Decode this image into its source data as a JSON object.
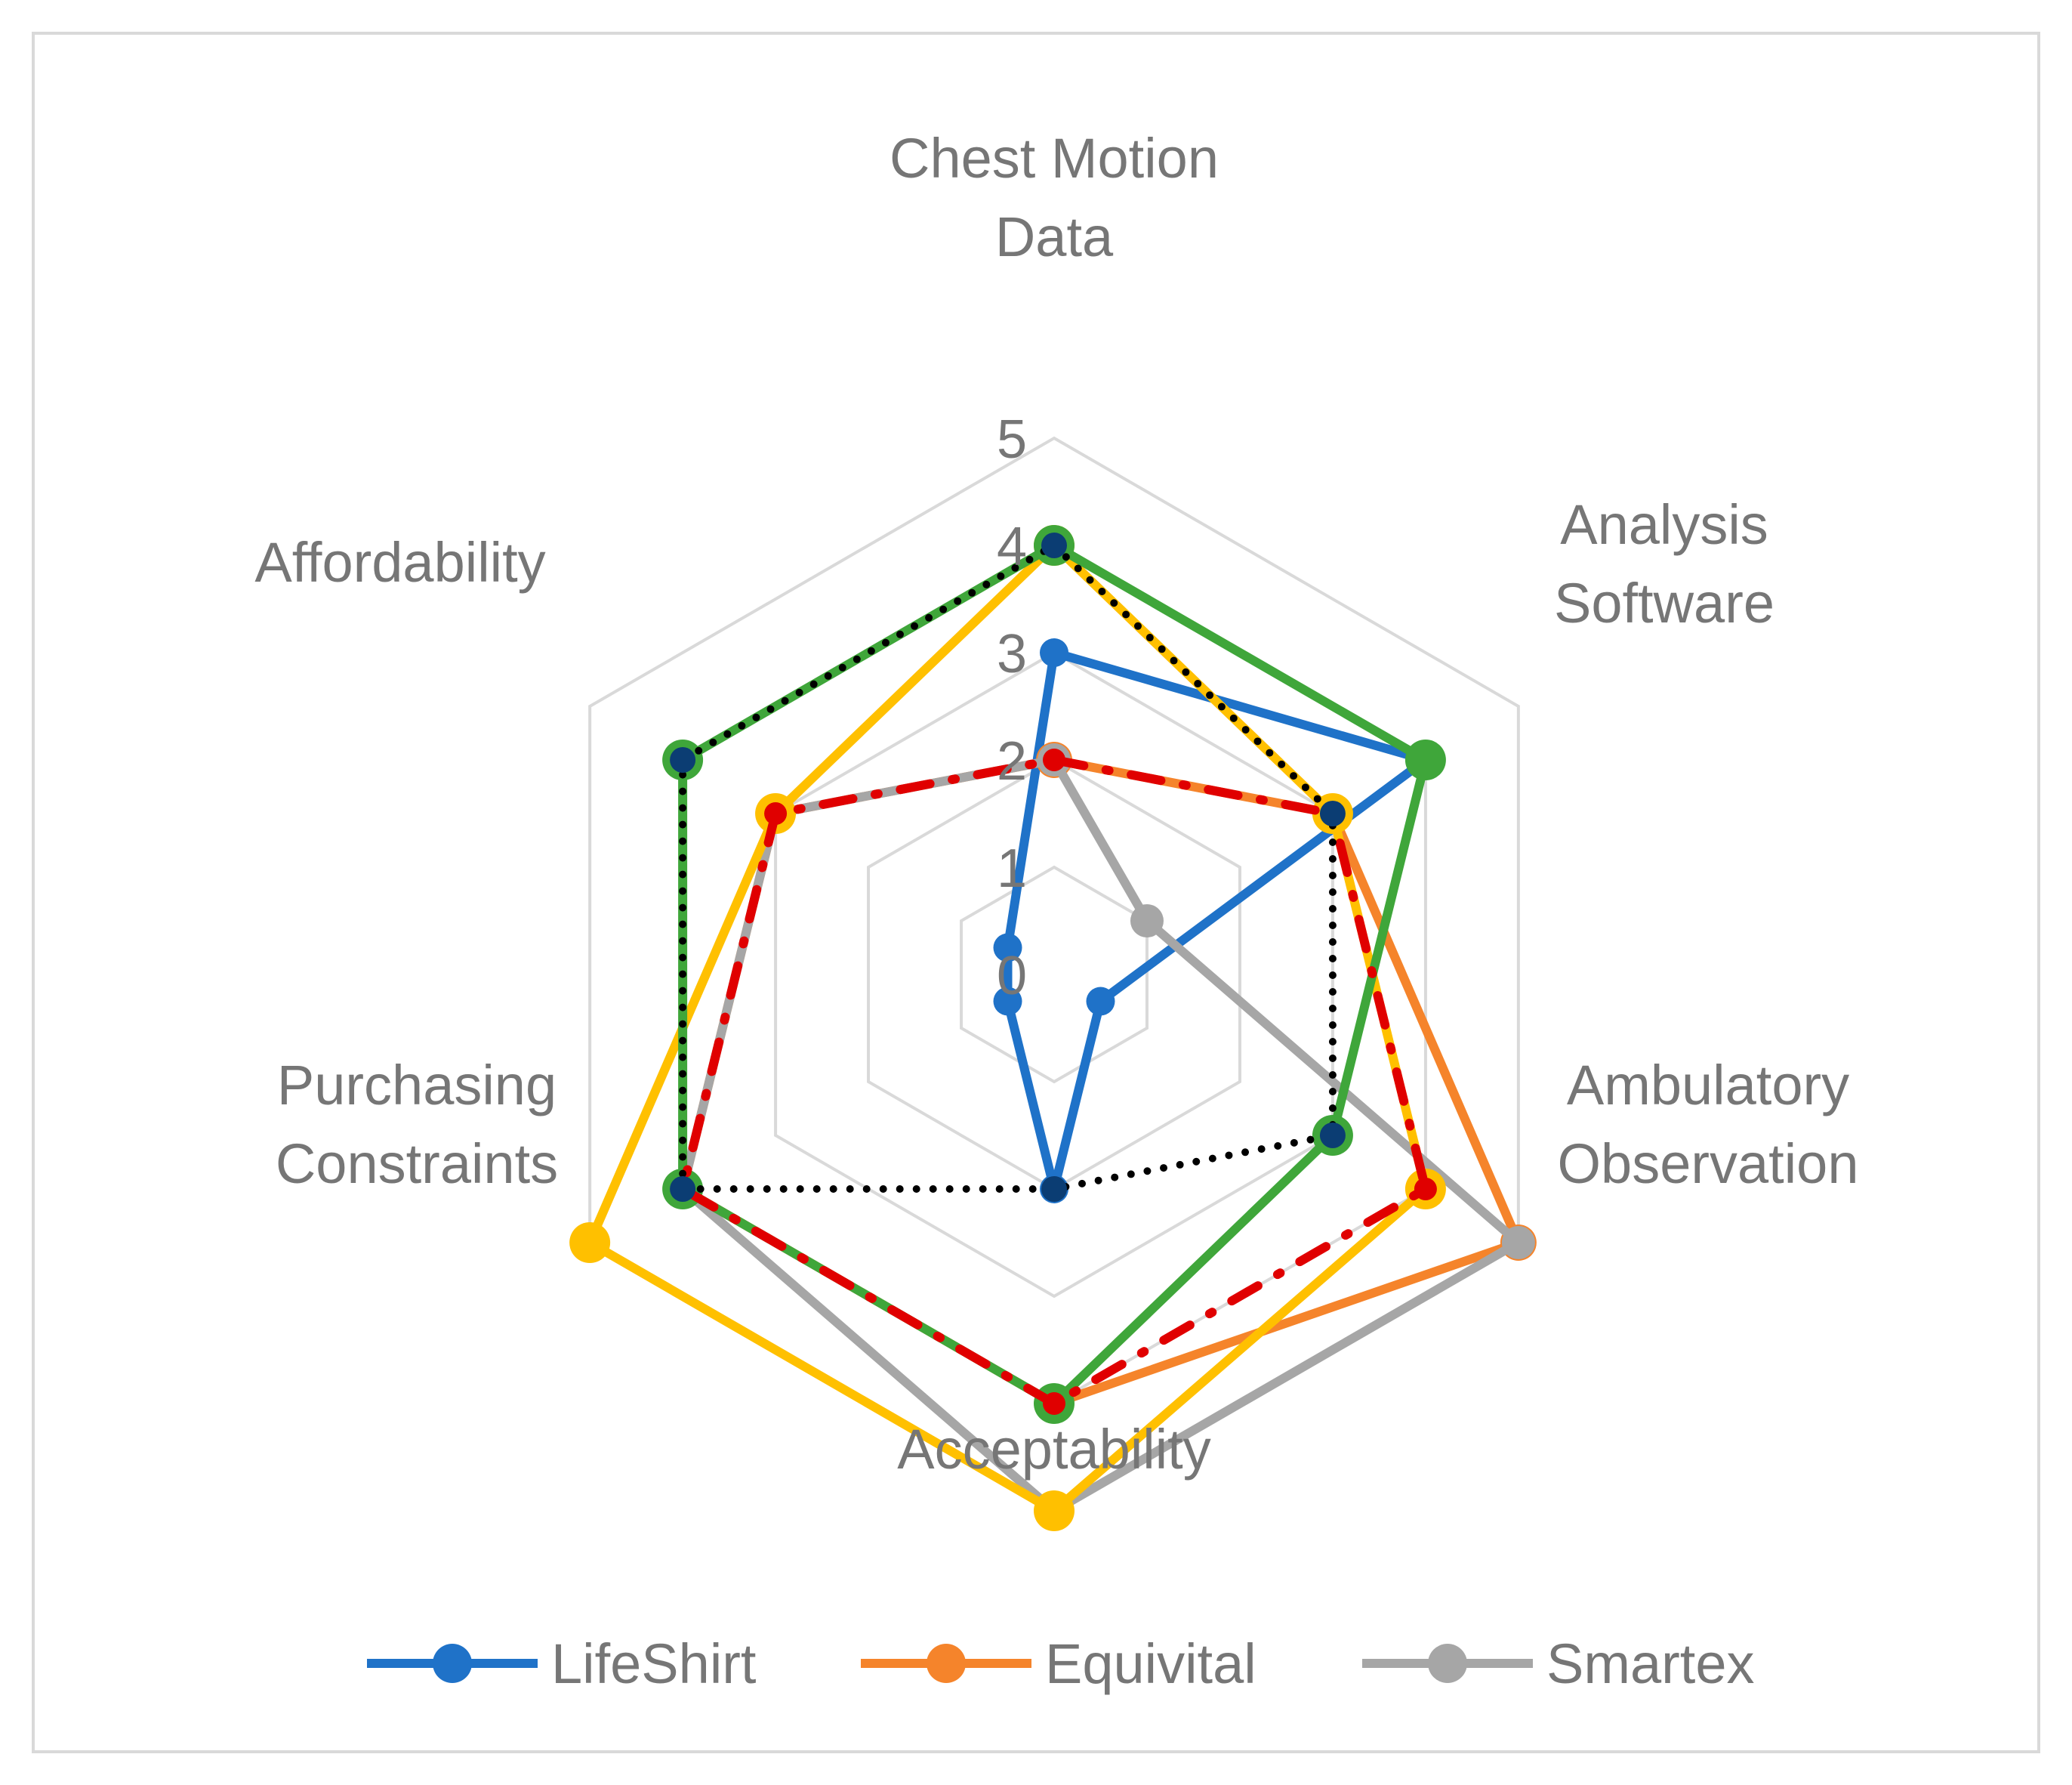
{
  "chart_data": {
    "type": "radar",
    "axes": [
      [
        "Chest Motion",
        "Data"
      ],
      [
        "Analysis",
        "Software"
      ],
      [
        "Ambulatory",
        "Observation"
      ],
      [
        "Acceptability"
      ],
      [
        "Purchasing",
        "Constraints"
      ],
      [
        "Affordability"
      ]
    ],
    "rlim": [
      0,
      5
    ],
    "ticks": [
      "0",
      "1",
      "2",
      "3",
      "4",
      "5"
    ],
    "grid": true,
    "legend_position": "bottom",
    "series": [
      {
        "name": "LifeShirt",
        "color": "#1f72c8",
        "values": [
          3,
          4,
          0.5,
          2,
          0.5,
          0.5
        ],
        "style": "solid",
        "marker": 26
      },
      {
        "name": "Equivital",
        "color": "#f5842b",
        "values": [
          2,
          3,
          5,
          4,
          4,
          3
        ],
        "style": "solid",
        "marker": 36
      },
      {
        "name": "Smartex",
        "color": "#a6a6a6",
        "values": [
          2,
          1,
          5,
          5,
          4,
          3
        ],
        "style": "solid",
        "marker": 32
      },
      {
        "name": "",
        "color": "#ffc000",
        "values": [
          4,
          3,
          4,
          5,
          5,
          3
        ],
        "style": "solid",
        "marker": 42
      },
      {
        "name": "",
        "color": "#3fa63a",
        "values": [
          4,
          4,
          3,
          4,
          4,
          4
        ],
        "style": "solid",
        "marker": 42
      },
      {
        "name": "",
        "color": "#e00000",
        "values": [
          2,
          3,
          4,
          4,
          4,
          3
        ],
        "style": "dashdot",
        "marker": 18
      },
      {
        "name": "",
        "color": "#000000",
        "values": [
          4,
          3,
          3,
          2,
          4,
          4
        ],
        "style": "dotted",
        "marker": 22,
        "markerColor": "#0b3d73"
      }
    ]
  }
}
